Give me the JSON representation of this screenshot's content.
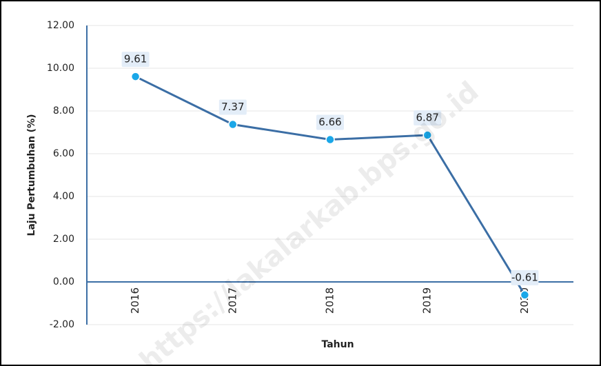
{
  "chart_data": {
    "type": "line",
    "x_label": "Tahun",
    "y_label": "Laju Pertumbuhan  (%)",
    "watermark": "https://lakalarkab.bps.go.id",
    "categories": [
      "2016",
      "2017",
      "2018",
      "2019",
      "2020"
    ],
    "series": [
      {
        "name": "Laju Pertumbuhan",
        "color": "#3b6ea5",
        "marker_color": "#1aa7e8",
        "values": [
          9.61,
          7.37,
          6.66,
          6.87,
          -0.61
        ]
      }
    ],
    "ylim": [
      -2,
      12
    ],
    "yticks": [
      {
        "value": -2,
        "label": "-2.00"
      },
      {
        "value": 0,
        "label": "0.00"
      },
      {
        "value": 2,
        "label": "2.00"
      },
      {
        "value": 4,
        "label": "4.00"
      },
      {
        "value": 6,
        "label": "6.00"
      },
      {
        "value": 8,
        "label": "8.00"
      },
      {
        "value": 10,
        "label": "10.00"
      },
      {
        "value": 12,
        "label": "12.00"
      }
    ],
    "grid": true
  }
}
